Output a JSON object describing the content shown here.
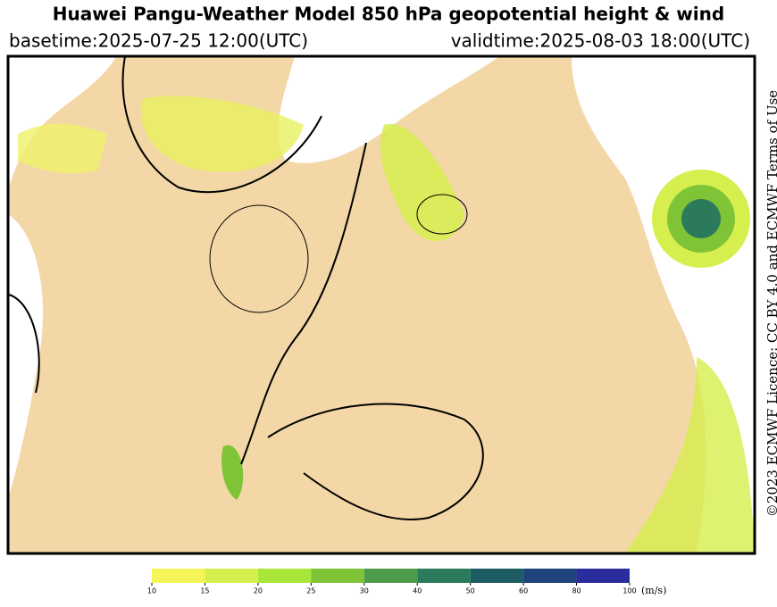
{
  "header": {
    "title": "Huawei Pangu-Weather Model 850 hPa geopotential height & wind",
    "basetime": "basetime:2025-07-25 12:00(UTC)",
    "validtime": "validtime:2025-08-03 18:00(UTC)"
  },
  "license": "©2023 ECMWF Licence: CC BY 4.0 and ECMWF Terms of Use",
  "colorbar": {
    "ticks": [
      10,
      15,
      20,
      25,
      30,
      40,
      50,
      60,
      80,
      100
    ],
    "colors": [
      "#f5f55a",
      "#d6ee4e",
      "#a8e63a",
      "#7ec436",
      "#4c9c4c",
      "#2c7a5c",
      "#1c5c62",
      "#1f417c",
      "#2b2c9c"
    ],
    "unit": "(m/s)"
  }
}
